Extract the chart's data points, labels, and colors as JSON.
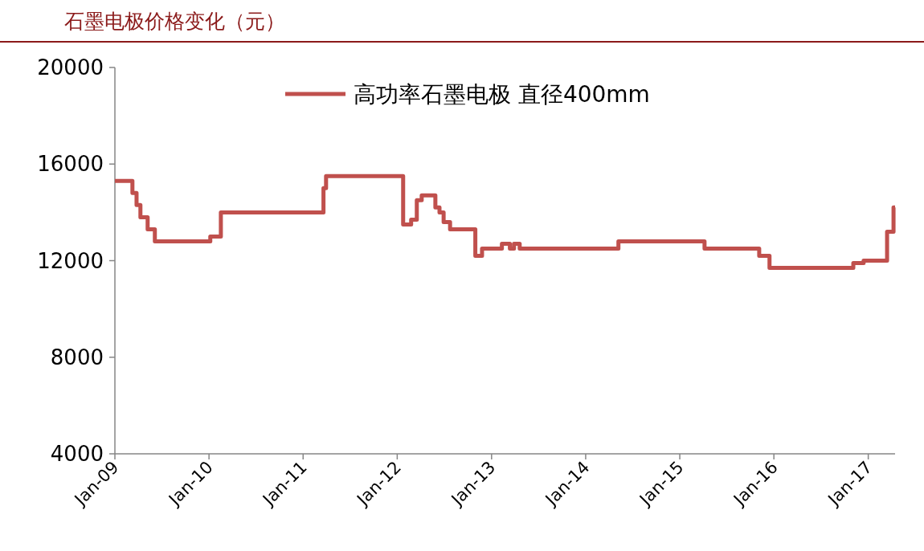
{
  "chart_data": {
    "type": "step",
    "title": "石墨电极价格变化（元）",
    "x": [
      "2009-01-01",
      "2009-03-10",
      "2009-03-26",
      "2009-04-10",
      "2009-05-08",
      "2009-06-05",
      "2010-01-06",
      "2010-02-16",
      "2011-03-21",
      "2011-03-31",
      "2012-01-24",
      "2012-02-24",
      "2012-03-17",
      "2012-04-05",
      "2012-05-28",
      "2012-06-13",
      "2012-06-29",
      "2012-07-24",
      "2012-10-30",
      "2012-11-25",
      "2013-02-10",
      "2013-03-13",
      "2013-03-29",
      "2013-04-20",
      "2014-05-08",
      "2015-04-07",
      "2015-11-05",
      "2015-12-15",
      "2016-11-04",
      "2016-12-14",
      "2017-03-15",
      "2017-04-09",
      "2017-04-15"
    ],
    "series": [
      {
        "name": "高功率石墨电极 直径400mm",
        "color": "#c0504d",
        "values": [
          15300,
          14800,
          14300,
          13800,
          13300,
          12800,
          13000,
          14000,
          15000,
          15500,
          13500,
          13700,
          14500,
          14700,
          14200,
          14000,
          13600,
          13300,
          12200,
          12500,
          12700,
          12500,
          12700,
          12500,
          12800,
          12500,
          12200,
          11700,
          11900,
          12000,
          13200,
          14200,
          14200
        ]
      }
    ],
    "xlim": [
      "2009-01-01",
      "2017-04-15"
    ],
    "xticks": [
      {
        "value": "2009-01",
        "label": "Jan-09"
      },
      {
        "value": "2010-01",
        "label": "Jan-10"
      },
      {
        "value": "2011-01",
        "label": "Jan-11"
      },
      {
        "value": "2012-01",
        "label": "Jan-12"
      },
      {
        "value": "2013-01",
        "label": "Jan-13"
      },
      {
        "value": "2014-01",
        "label": "Jan-14"
      },
      {
        "value": "2015-01",
        "label": "Jan-15"
      },
      {
        "value": "2016-01",
        "label": "Jan-16"
      },
      {
        "value": "2017-01",
        "label": "Jan-17"
      }
    ],
    "ylim": [
      4000,
      20000
    ],
    "yticks": [
      4000,
      8000,
      12000,
      16000,
      20000
    ],
    "legend": "top",
    "grid": false
  }
}
